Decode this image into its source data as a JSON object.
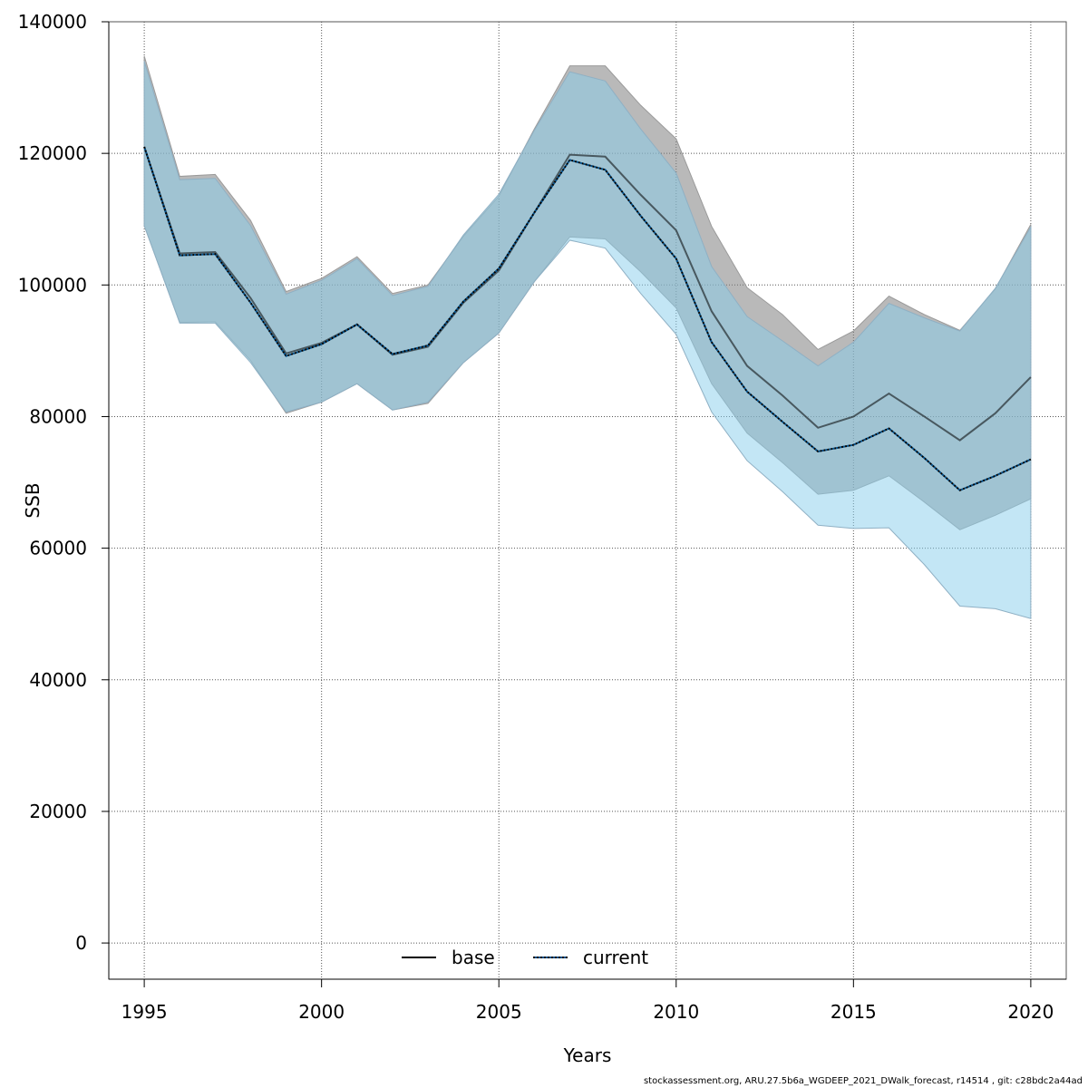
{
  "footer": "stockassessment.org, ARU.27.5b6a_WGDEEP_2021_DWalk_forecast, r14514 , git: c28bdc2a44ad",
  "chart_data": {
    "type": "line",
    "title": "",
    "xlabel": "Years",
    "ylabel": "SSB",
    "xlim": [
      1994,
      2021
    ],
    "ylim": [
      -5500,
      140000
    ],
    "xticks": [
      1995,
      2000,
      2005,
      2010,
      2015,
      2020
    ],
    "yticks": [
      0,
      20000,
      40000,
      60000,
      80000,
      100000,
      120000,
      140000
    ],
    "grid": true,
    "legend_position": "bottom-center",
    "x": [
      1995,
      1996,
      1997,
      1998,
      1999,
      2000,
      2001,
      2002,
      2003,
      2004,
      2005,
      2006,
      2007,
      2008,
      2009,
      2010,
      2011,
      2012,
      2013,
      2014,
      2015,
      2016,
      2017,
      2018,
      2019,
      2020
    ],
    "series": [
      {
        "name": "base",
        "line_style": "solid",
        "line_color": "#000000",
        "band_color": "#808080",
        "values": [
          121000,
          104800,
          105000,
          98000,
          89600,
          91200,
          94000,
          89400,
          90600,
          97300,
          102200,
          111000,
          119800,
          119500,
          113700,
          108300,
          96000,
          87700,
          83200,
          78300,
          80000,
          83500,
          80000,
          76400,
          80500,
          86000
        ],
        "lower": [
          109000,
          94300,
          94400,
          88500,
          80500,
          82200,
          85000,
          81000,
          82000,
          88200,
          92700,
          100500,
          107300,
          107000,
          102000,
          96500,
          85000,
          77500,
          73000,
          68200,
          68800,
          71000,
          67000,
          62800,
          65000,
          67500
        ],
        "upper": [
          134800,
          116500,
          116800,
          109800,
          99000,
          101000,
          104300,
          98700,
          100000,
          107400,
          113500,
          123700,
          133300,
          133300,
          127300,
          122200,
          108900,
          99600,
          95500,
          90200,
          93000,
          98300,
          95500,
          93100,
          99400,
          109200
        ]
      },
      {
        "name": "current",
        "line_style": "dotted",
        "line_color": "#00508c",
        "band_color": "#87ceeb",
        "values": [
          121000,
          104500,
          104700,
          97300,
          89200,
          91000,
          94000,
          89500,
          90800,
          97500,
          102500,
          111000,
          119000,
          117500,
          110500,
          104000,
          91300,
          83800,
          79200,
          74700,
          75700,
          78200,
          73700,
          68800,
          71000,
          73500
        ],
        "lower": [
          109000,
          94200,
          94200,
          88200,
          80700,
          82200,
          85000,
          81000,
          82200,
          88200,
          92700,
          100500,
          106800,
          105600,
          98700,
          92500,
          80700,
          73300,
          68600,
          63500,
          63000,
          63100,
          57500,
          51200,
          50800,
          49300
        ],
        "upper": [
          134000,
          116000,
          116200,
          109000,
          98600,
          100700,
          104000,
          98400,
          99800,
          107600,
          113800,
          123500,
          132400,
          131000,
          123700,
          117000,
          102800,
          95200,
          91500,
          87700,
          91300,
          97200,
          95000,
          93000,
          99500,
          108800
        ]
      }
    ]
  }
}
